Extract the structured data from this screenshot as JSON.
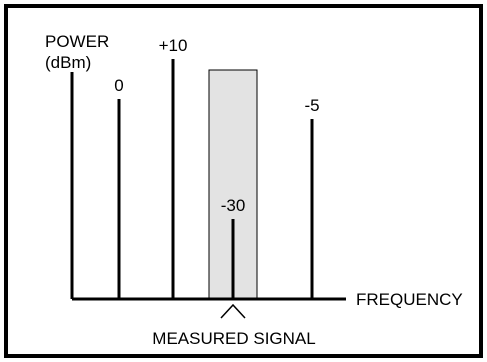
{
  "chart_data": {
    "type": "bar",
    "title": "",
    "ylabel_line1": "POWER",
    "ylabel_line2": "(dBm)",
    "xlabel": "FREQUENCY",
    "annotation": "MEASURED SIGNAL",
    "ylim": [
      -50,
      30
    ],
    "grid": false,
    "legend": "none",
    "bars": [
      {
        "label": "0",
        "value": 0,
        "highlighted": false
      },
      {
        "label": "+10",
        "value": 10,
        "highlighted": false
      },
      {
        "label": "-30",
        "value": -30,
        "highlighted": true
      },
      {
        "label": "-5",
        "value": -5,
        "highlighted": false
      }
    ]
  },
  "colors": {
    "frame": "#000000",
    "line": "#000000",
    "highlight_fill": "#e3e3e3",
    "highlight_stroke": "#000000",
    "background": "#ffffff"
  }
}
